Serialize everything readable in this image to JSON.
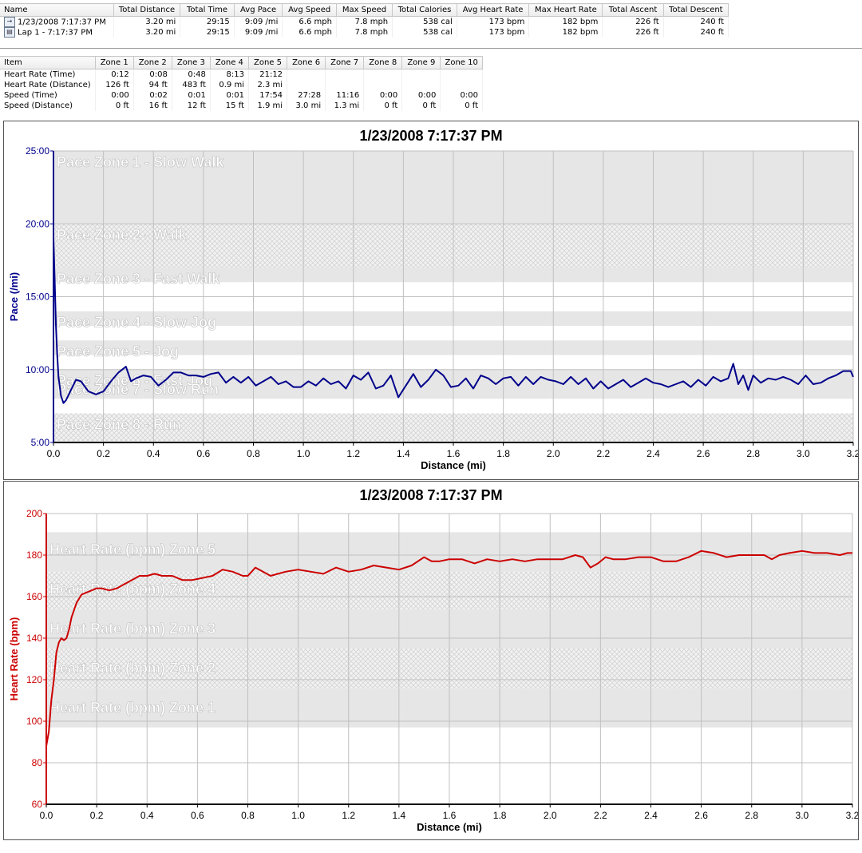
{
  "summary": {
    "columns": [
      "Name",
      "Total Distance",
      "Total Time",
      "Avg Pace",
      "Avg Speed",
      "Max Speed",
      "Total Calories",
      "Avg Heart Rate",
      "Max Heart Rate",
      "Total Ascent",
      "Total Descent"
    ],
    "rows": [
      {
        "icon": "runner-icon",
        "cells": [
          "1/23/2008 7:17:37 PM",
          "3.20 mi",
          "29:15",
          "9:09 /mi",
          "6.6 mph",
          "7.8 mph",
          "538 cal",
          "173 bpm",
          "182 bpm",
          "226 ft",
          "240 ft"
        ]
      },
      {
        "icon": "lap-icon",
        "cells": [
          "Lap 1 - 7:17:37 PM",
          "3.20 mi",
          "29:15",
          "9:09 /mi",
          "6.6 mph",
          "7.8 mph",
          "538 cal",
          "173 bpm",
          "182 bpm",
          "226 ft",
          "240 ft"
        ]
      }
    ]
  },
  "zones": {
    "columns": [
      "Item",
      "Zone 1",
      "Zone 2",
      "Zone 3",
      "Zone 4",
      "Zone 5",
      "Zone 6",
      "Zone 7",
      "Zone 8",
      "Zone 9",
      "Zone 10"
    ],
    "rows": [
      [
        "Heart Rate (Time)",
        "0:12",
        "0:08",
        "0:48",
        "8:13",
        "21:12",
        "",
        "",
        "",
        "",
        ""
      ],
      [
        "Heart Rate (Distance)",
        "126 ft",
        "94 ft",
        "483 ft",
        "0.9 mi",
        "2.3 mi",
        "",
        "",
        "",
        "",
        ""
      ],
      [
        "Speed (Time)",
        "0:00",
        "0:02",
        "0:01",
        "0:01",
        "17:54",
        "27:28",
        "11:16",
        "0:00",
        "0:00",
        "0:00"
      ],
      [
        "Speed (Distance)",
        "0 ft",
        "16 ft",
        "12 ft",
        "15 ft",
        "1.9 mi",
        "3.0 mi",
        "1.3 mi",
        "0 ft",
        "0 ft",
        "0 ft"
      ]
    ]
  },
  "chart_data": [
    {
      "type": "line",
      "title": "1/23/2008 7:17:37 PM",
      "xlabel": "Distance (mi)",
      "ylabel": "Pace (/mi)",
      "color": "#00008b",
      "xlim": [
        0,
        3.2
      ],
      "ylim": [
        5,
        25
      ],
      "xticks": [
        "0.0",
        "0.2",
        "0.4",
        "0.6",
        "0.8",
        "1.0",
        "1.2",
        "1.4",
        "1.6",
        "1.8",
        "2.0",
        "2.2",
        "2.4",
        "2.6",
        "2.8",
        "3.0",
        "3.2"
      ],
      "yticks": [
        {
          "v": 25,
          "label": "25:00"
        },
        {
          "v": 20,
          "label": "20:00"
        },
        {
          "v": 15,
          "label": "15:00"
        },
        {
          "v": 10,
          "label": "10:00"
        },
        {
          "v": 5,
          "label": "5:00"
        }
      ],
      "zones": [
        {
          "label": "Pace Zone 1 - Slow Walk",
          "from": 20,
          "to": 25,
          "style": "solid"
        },
        {
          "label": "Pace Zone 2 - Walk",
          "from": 17,
          "to": 20,
          "style": "hatch"
        },
        {
          "label": "Pace Zone 3 - Fast Walk",
          "from": 16,
          "to": 17,
          "style": "solid"
        },
        {
          "label": "Pace Zone 4 - Slow Jog",
          "from": 13,
          "to": 14,
          "style": "solid"
        },
        {
          "label": "Pace Zone 5 - Jog",
          "from": 11,
          "to": 12,
          "style": "solid"
        },
        {
          "label": "Pace Zone 6 - Fast Jog",
          "from": 9,
          "to": 10,
          "style": "solid"
        },
        {
          "label": "Pace Zone 7 - Slow Run",
          "from": 8,
          "to": 9,
          "style": "solid"
        },
        {
          "label": "Pace Zone 8 - Run",
          "from": 5,
          "to": 7,
          "style": "hatch"
        }
      ],
      "zone_label_values": [
        24.3,
        19.3,
        16.3,
        13.3,
        11.3,
        9.3,
        8.7,
        6.3
      ],
      "series": [
        {
          "x": [
            0,
            0.005,
            0.01,
            0.015,
            0.02,
            0.03,
            0.04,
            0.05,
            0.07,
            0.09,
            0.11,
            0.14,
            0.17,
            0.2,
            0.23,
            0.26,
            0.29,
            0.31,
            0.33,
            0.36,
            0.39,
            0.42,
            0.45,
            0.48,
            0.51,
            0.54,
            0.57,
            0.6,
            0.63,
            0.66,
            0.69,
            0.72,
            0.75,
            0.78,
            0.81,
            0.84,
            0.87,
            0.9,
            0.93,
            0.96,
            0.99,
            1.02,
            1.05,
            1.08,
            1.11,
            1.14,
            1.17,
            1.2,
            1.23,
            1.26,
            1.29,
            1.32,
            1.35,
            1.38,
            1.41,
            1.44,
            1.47,
            1.5,
            1.53,
            1.56,
            1.59,
            1.62,
            1.65,
            1.68,
            1.71,
            1.74,
            1.77,
            1.8,
            1.83,
            1.86,
            1.89,
            1.92,
            1.95,
            1.98,
            2.01,
            2.04,
            2.07,
            2.1,
            2.13,
            2.16,
            2.19,
            2.22,
            2.25,
            2.28,
            2.31,
            2.34,
            2.37,
            2.4,
            2.43,
            2.46,
            2.49,
            2.52,
            2.55,
            2.58,
            2.61,
            2.64,
            2.67,
            2.7,
            2.72,
            2.74,
            2.76,
            2.78,
            2.8,
            2.83,
            2.86,
            2.89,
            2.92,
            2.95,
            2.98,
            3.01,
            3.04,
            3.07,
            3.1,
            3.13,
            3.16,
            3.19,
            3.2
          ],
          "y": [
            19,
            16,
            13,
            11,
            9.5,
            8.2,
            7.7,
            7.9,
            8.6,
            9.3,
            9.2,
            8.5,
            8.3,
            8.5,
            9.2,
            9.8,
            10.2,
            9.2,
            9.4,
            9.6,
            9.5,
            8.9,
            9.3,
            9.8,
            9.8,
            9.6,
            9.6,
            9.5,
            9.7,
            9.8,
            9.1,
            9.5,
            9.1,
            9.5,
            8.9,
            9.2,
            9.5,
            9.0,
            9.2,
            8.8,
            8.8,
            9.2,
            8.9,
            9.4,
            9.0,
            9.2,
            8.7,
            9.6,
            9.3,
            9.8,
            8.7,
            8.9,
            9.6,
            8.1,
            8.9,
            9.7,
            8.8,
            9.3,
            10.0,
            9.6,
            8.8,
            8.9,
            9.4,
            8.7,
            9.6,
            9.4,
            9.0,
            9.4,
            9.5,
            8.9,
            9.5,
            9.0,
            9.5,
            9.3,
            9.2,
            9.0,
            9.5,
            9.0,
            9.4,
            8.7,
            9.2,
            8.7,
            9.0,
            9.3,
            8.8,
            9.1,
            9.4,
            9.1,
            9.0,
            8.8,
            9.0,
            9.2,
            8.8,
            9.3,
            8.9,
            9.5,
            9.2,
            9.4,
            10.4,
            9.0,
            9.6,
            8.6,
            9.6,
            9.1,
            9.4,
            9.3,
            9.5,
            9.3,
            9.0,
            9.6,
            9.0,
            9.1,
            9.4,
            9.6,
            9.9,
            9.9,
            9.5
          ]
        }
      ]
    },
    {
      "type": "line",
      "title": "1/23/2008 7:17:37 PM",
      "xlabel": "Distance (mi)",
      "ylabel": "Heart Rate (bpm)",
      "color": "#cc0000",
      "xlim": [
        0,
        3.2
      ],
      "ylim": [
        60,
        200
      ],
      "xticks": [
        "0.0",
        "0.2",
        "0.4",
        "0.6",
        "0.8",
        "1.0",
        "1.2",
        "1.4",
        "1.6",
        "1.8",
        "2.0",
        "2.2",
        "2.4",
        "2.6",
        "2.8",
        "3.0",
        "3.2"
      ],
      "yticks": [
        {
          "v": 200,
          "label": "200"
        },
        {
          "v": 180,
          "label": "180"
        },
        {
          "v": 160,
          "label": "160"
        },
        {
          "v": 140,
          "label": "140"
        },
        {
          "v": 120,
          "label": "120"
        },
        {
          "v": 100,
          "label": "100"
        },
        {
          "v": 80,
          "label": "80"
        },
        {
          "v": 60,
          "label": "60"
        }
      ],
      "zones": [
        {
          "label": "Heart Rate (bpm) Zone 5",
          "from": 172,
          "to": 191,
          "style": "solid"
        },
        {
          "label": "Heart Rate (bpm) Zone 4",
          "from": 154,
          "to": 172,
          "style": "hatch"
        },
        {
          "label": "Heart Rate (bpm) Zone 3",
          "from": 135,
          "to": 154,
          "style": "solid"
        },
        {
          "label": "Heart Rate (bpm) Zone 2",
          "from": 116,
          "to": 135,
          "style": "hatch"
        },
        {
          "label": "Heart Rate (bpm) Zone 1",
          "from": 97,
          "to": 116,
          "style": "solid"
        }
      ],
      "zone_label_values": [
        183,
        164,
        145,
        126,
        107
      ],
      "series": [
        {
          "x": [
            0,
            0.01,
            0.02,
            0.03,
            0.04,
            0.05,
            0.06,
            0.07,
            0.08,
            0.09,
            0.1,
            0.12,
            0.14,
            0.16,
            0.18,
            0.2,
            0.22,
            0.25,
            0.28,
            0.31,
            0.34,
            0.37,
            0.4,
            0.43,
            0.46,
            0.5,
            0.54,
            0.58,
            0.62,
            0.66,
            0.7,
            0.74,
            0.78,
            0.8,
            0.83,
            0.86,
            0.89,
            0.92,
            0.95,
            1.0,
            1.05,
            1.1,
            1.15,
            1.2,
            1.25,
            1.3,
            1.35,
            1.4,
            1.45,
            1.5,
            1.53,
            1.56,
            1.6,
            1.65,
            1.7,
            1.75,
            1.8,
            1.85,
            1.9,
            1.95,
            2.0,
            2.05,
            2.1,
            2.13,
            2.16,
            2.19,
            2.22,
            2.25,
            2.3,
            2.35,
            2.4,
            2.45,
            2.5,
            2.55,
            2.6,
            2.65,
            2.7,
            2.75,
            2.8,
            2.85,
            2.88,
            2.91,
            2.95,
            3.0,
            3.05,
            3.1,
            3.15,
            3.18,
            3.2
          ],
          "y": [
            88,
            95,
            110,
            120,
            133,
            138,
            140,
            139,
            140,
            144,
            150,
            157,
            161,
            162,
            163,
            164,
            164,
            163,
            164,
            166,
            168,
            170,
            170,
            171,
            170,
            170,
            168,
            168,
            169,
            170,
            173,
            172,
            170,
            170,
            174,
            172,
            170,
            171,
            172,
            173,
            172,
            171,
            174,
            172,
            173,
            175,
            174,
            173,
            175,
            179,
            177,
            177,
            178,
            178,
            176,
            178,
            177,
            178,
            177,
            178,
            178,
            178,
            180,
            179,
            174,
            176,
            179,
            178,
            178,
            179,
            179,
            177,
            177,
            179,
            182,
            181,
            179,
            180,
            180,
            180,
            178,
            180,
            181,
            182,
            181,
            181,
            180,
            181,
            181
          ]
        }
      ]
    }
  ]
}
